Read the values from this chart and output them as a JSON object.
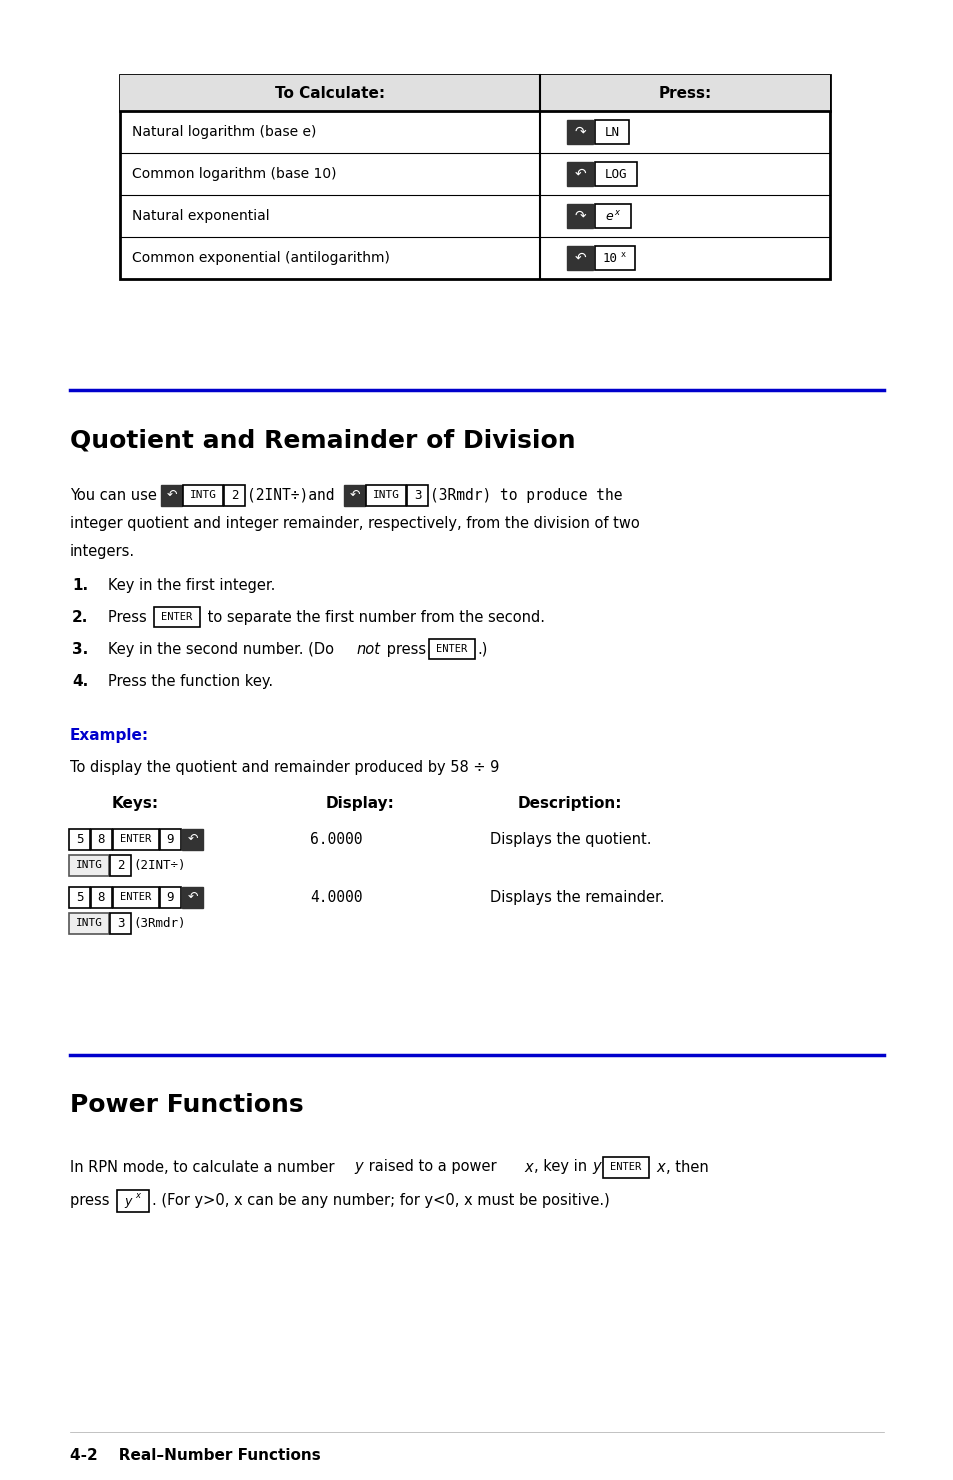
{
  "bg_color": "#ffffff",
  "section1_title": "Quotient and Remainder of Division",
  "section2_title": "Power Functions",
  "blue_color": "#0000cc",
  "black_color": "#000000",
  "footer_text": "4-2    Real–Number Functions",
  "table_rows": [
    "Natural logarithm (base e)",
    "Common logarithm (base 10)",
    "Natural exponential",
    "Common exponential (antilogarithm)"
  ]
}
